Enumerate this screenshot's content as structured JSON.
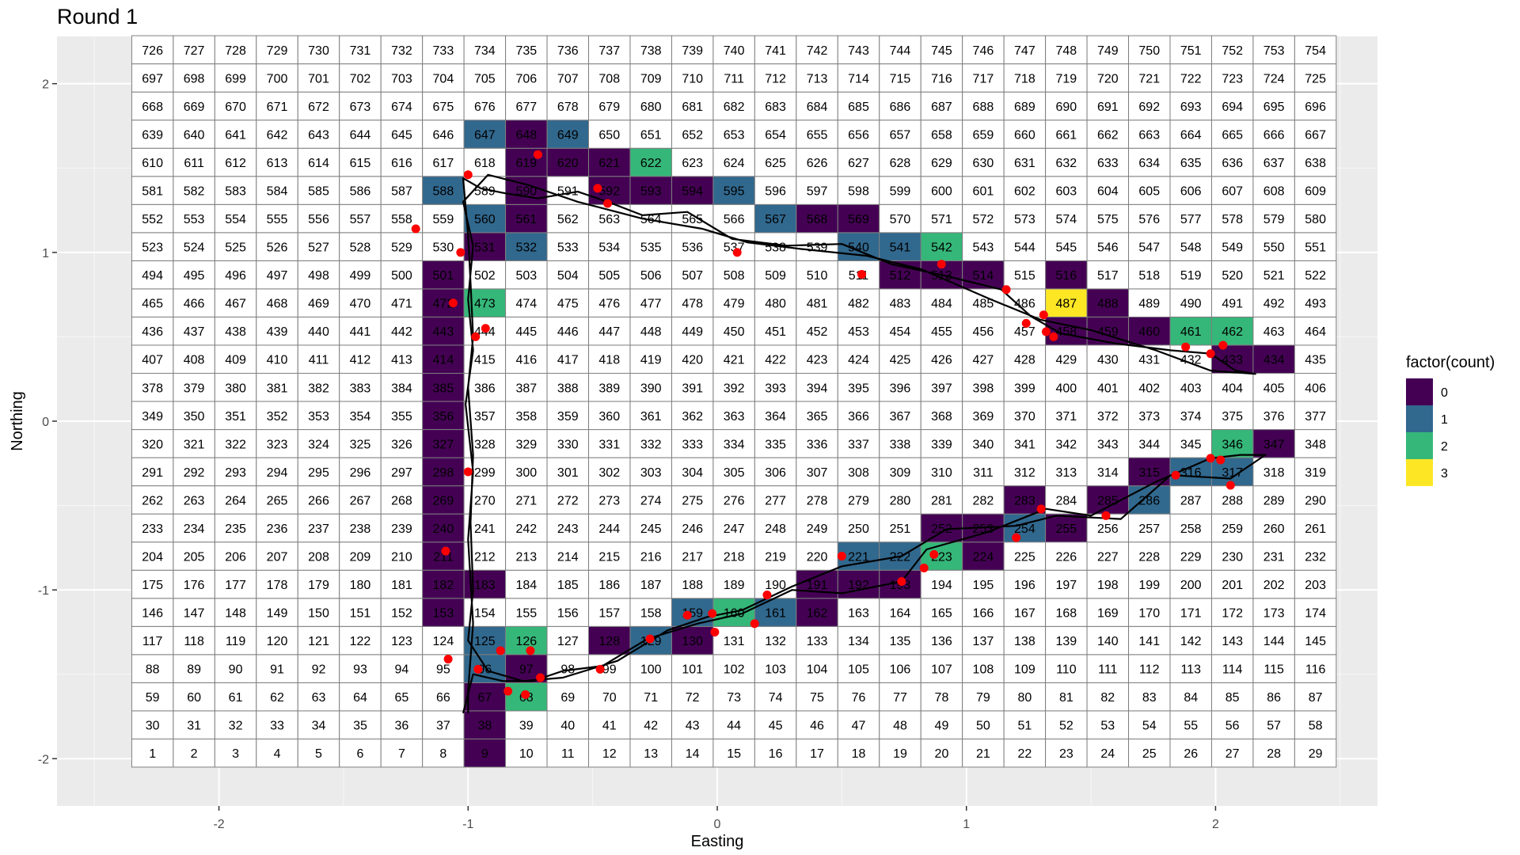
{
  "chart_data": {
    "type": "heatmap",
    "title": "Round 1",
    "xlabel": "Easting",
    "ylabel": "Northing",
    "xlim": [
      -2.65,
      2.65
    ],
    "ylim": [
      -2.28,
      2.28
    ],
    "x_ticks": [
      -2,
      -1,
      0,
      1,
      2
    ],
    "y_ticks": [
      -2,
      -1,
      0,
      1,
      2
    ],
    "x_tick_labels": [
      "-2",
      "-1",
      "0",
      "1",
      "2"
    ],
    "y_tick_labels": [
      "-2",
      "-1",
      "0",
      "1",
      "2"
    ],
    "grid": true,
    "grid_cols": 29,
    "grid_rows": 26,
    "cell_x_origin": -2.35,
    "cell_y_origin": -2.05,
    "cell_size": 0.1667,
    "cell_labels": "1 to 754, numbered left-to-right starting at the bottom row",
    "legend": {
      "title": "factor(count)",
      "position": "right",
      "entries": [
        {
          "label": "0",
          "color": "#440154"
        },
        {
          "label": "1",
          "color": "#31688E"
        },
        {
          "label": "2",
          "color": "#35B779"
        },
        {
          "label": "3",
          "color": "#FDE725"
        }
      ]
    },
    "counted_cells": {
      "0": [
        9,
        38,
        67,
        97,
        128,
        130,
        153,
        162,
        182,
        183,
        191,
        192,
        193,
        211,
        224,
        240,
        252,
        253,
        255,
        269,
        283,
        285,
        298,
        315,
        327,
        347,
        356,
        385,
        414,
        433,
        434,
        443,
        458,
        459,
        460,
        472,
        488,
        501,
        512,
        513,
        514,
        516,
        531,
        561,
        568,
        569,
        590,
        592,
        593,
        594,
        619,
        620,
        621,
        648
      ],
      "1": [
        96,
        125,
        129,
        159,
        161,
        221,
        222,
        254,
        286,
        316,
        317,
        532,
        540,
        541,
        560,
        567,
        588,
        595,
        647,
        649
      ],
      "2": [
        68,
        126,
        160,
        223,
        346,
        461,
        462,
        473,
        542,
        622
      ],
      "3": [
        487
      ]
    },
    "track": [
      [
        -1.02,
        -1.73
      ],
      [
        -0.98,
        -1.5
      ],
      [
        -0.86,
        -1.54
      ],
      [
        -0.74,
        -1.54
      ],
      [
        -0.62,
        -1.48
      ],
      [
        -0.46,
        -1.45
      ],
      [
        -0.28,
        -1.29
      ],
      [
        -0.08,
        -1.2
      ],
      [
        0.1,
        -1.14
      ],
      [
        0.3,
        -1.0
      ],
      [
        0.5,
        -1.02
      ],
      [
        0.74,
        -0.95
      ],
      [
        0.84,
        -0.76
      ],
      [
        1.08,
        -0.66
      ],
      [
        1.32,
        -0.52
      ],
      [
        1.5,
        -0.56
      ],
      [
        1.76,
        -0.36
      ],
      [
        1.98,
        -0.22
      ],
      [
        2.1,
        -0.2
      ],
      [
        2.2,
        -0.2
      ],
      [
        2.06,
        -0.34
      ],
      [
        1.82,
        -0.32
      ],
      [
        1.62,
        -0.58
      ],
      [
        1.36,
        -0.56
      ],
      [
        1.2,
        -0.62
      ],
      [
        0.92,
        -0.64
      ],
      [
        0.74,
        -0.8
      ],
      [
        0.5,
        -0.86
      ],
      [
        0.3,
        -0.98
      ],
      [
        0.1,
        -1.12
      ],
      [
        -0.04,
        -1.16
      ],
      [
        -0.2,
        -1.24
      ],
      [
        -0.4,
        -1.42
      ],
      [
        -0.62,
        -1.52
      ],
      [
        -0.78,
        -1.54
      ],
      [
        -0.92,
        -1.48
      ],
      [
        -1.0,
        -1.3
      ],
      [
        -0.98,
        -1.0
      ],
      [
        -0.99,
        -0.6
      ],
      [
        -0.98,
        -0.2
      ],
      [
        -1.0,
        0.2
      ],
      [
        -0.98,
        0.5
      ],
      [
        -0.99,
        0.82
      ],
      [
        -1.0,
        1.1
      ],
      [
        -1.02,
        1.44
      ],
      [
        -0.95,
        1.38
      ],
      [
        -0.85,
        1.35
      ],
      [
        -0.72,
        1.32
      ],
      [
        -0.56,
        1.36
      ],
      [
        -0.44,
        1.3
      ],
      [
        -0.3,
        1.22
      ],
      [
        -0.12,
        1.24
      ],
      [
        0.06,
        1.08
      ],
      [
        0.28,
        1.04
      ],
      [
        0.5,
        1.05
      ],
      [
        0.7,
        0.93
      ],
      [
        0.92,
        0.86
      ],
      [
        1.14,
        0.78
      ],
      [
        1.26,
        0.62
      ],
      [
        1.38,
        0.52
      ],
      [
        1.6,
        0.46
      ],
      [
        1.82,
        0.42
      ],
      [
        1.98,
        0.4
      ],
      [
        2.08,
        0.3
      ],
      [
        2.16,
        0.28
      ],
      [
        1.98,
        0.3
      ],
      [
        1.76,
        0.42
      ],
      [
        1.5,
        0.54
      ],
      [
        1.3,
        0.6
      ],
      [
        1.1,
        0.72
      ],
      [
        0.82,
        0.9
      ],
      [
        0.6,
        0.98
      ],
      [
        0.34,
        1.02
      ],
      [
        0.12,
        1.06
      ],
      [
        -0.06,
        1.14
      ],
      [
        -0.3,
        1.2
      ],
      [
        -0.56,
        1.3
      ],
      [
        -0.76,
        1.4
      ],
      [
        -0.92,
        1.46
      ],
      [
        -1.02,
        1.3
      ],
      [
        -0.98,
        1.04
      ],
      [
        -1.0,
        0.72
      ],
      [
        -0.98,
        0.42
      ],
      [
        -1.01,
        0.1
      ],
      [
        -0.98,
        -0.3
      ],
      [
        -1.0,
        -0.7
      ],
      [
        -0.98,
        -1.2
      ],
      [
        -1.0,
        -1.6
      ],
      [
        -1.0,
        -1.73
      ]
    ],
    "detections": [
      [
        -1.0,
        1.46
      ],
      [
        -0.72,
        1.58
      ],
      [
        -0.48,
        1.38
      ],
      [
        -0.44,
        1.29
      ],
      [
        -1.21,
        1.14
      ],
      [
        -1.03,
        1.0
      ],
      [
        0.08,
        1.0
      ],
      [
        0.58,
        0.87
      ],
      [
        0.9,
        0.93
      ],
      [
        1.16,
        0.78
      ],
      [
        -1.06,
        0.7
      ],
      [
        -0.93,
        0.55
      ],
      [
        -0.97,
        0.5
      ],
      [
        1.24,
        0.58
      ],
      [
        1.31,
        0.63
      ],
      [
        1.32,
        0.53
      ],
      [
        1.35,
        0.5
      ],
      [
        1.88,
        0.44
      ],
      [
        1.98,
        0.4
      ],
      [
        2.03,
        0.45
      ],
      [
        -1.0,
        -0.3
      ],
      [
        1.84,
        -0.32
      ],
      [
        1.98,
        -0.22
      ],
      [
        2.02,
        -0.23
      ],
      [
        2.06,
        -0.38
      ],
      [
        1.3,
        -0.52
      ],
      [
        1.56,
        -0.56
      ],
      [
        1.2,
        -0.69
      ],
      [
        -1.09,
        -0.77
      ],
      [
        0.5,
        -0.8
      ],
      [
        0.87,
        -0.79
      ],
      [
        0.83,
        -0.87
      ],
      [
        0.74,
        -0.95
      ],
      [
        0.2,
        -1.03
      ],
      [
        -0.12,
        -1.15
      ],
      [
        -0.02,
        -1.14
      ],
      [
        -0.01,
        -1.25
      ],
      [
        0.15,
        -1.2
      ],
      [
        -0.27,
        -1.29
      ],
      [
        -0.87,
        -1.36
      ],
      [
        -0.75,
        -1.36
      ],
      [
        -1.08,
        -1.41
      ],
      [
        -0.96,
        -1.47
      ],
      [
        -0.47,
        -1.47
      ],
      [
        -0.71,
        -1.52
      ],
      [
        -0.84,
        -1.6
      ],
      [
        -0.77,
        -1.62
      ]
    ]
  }
}
